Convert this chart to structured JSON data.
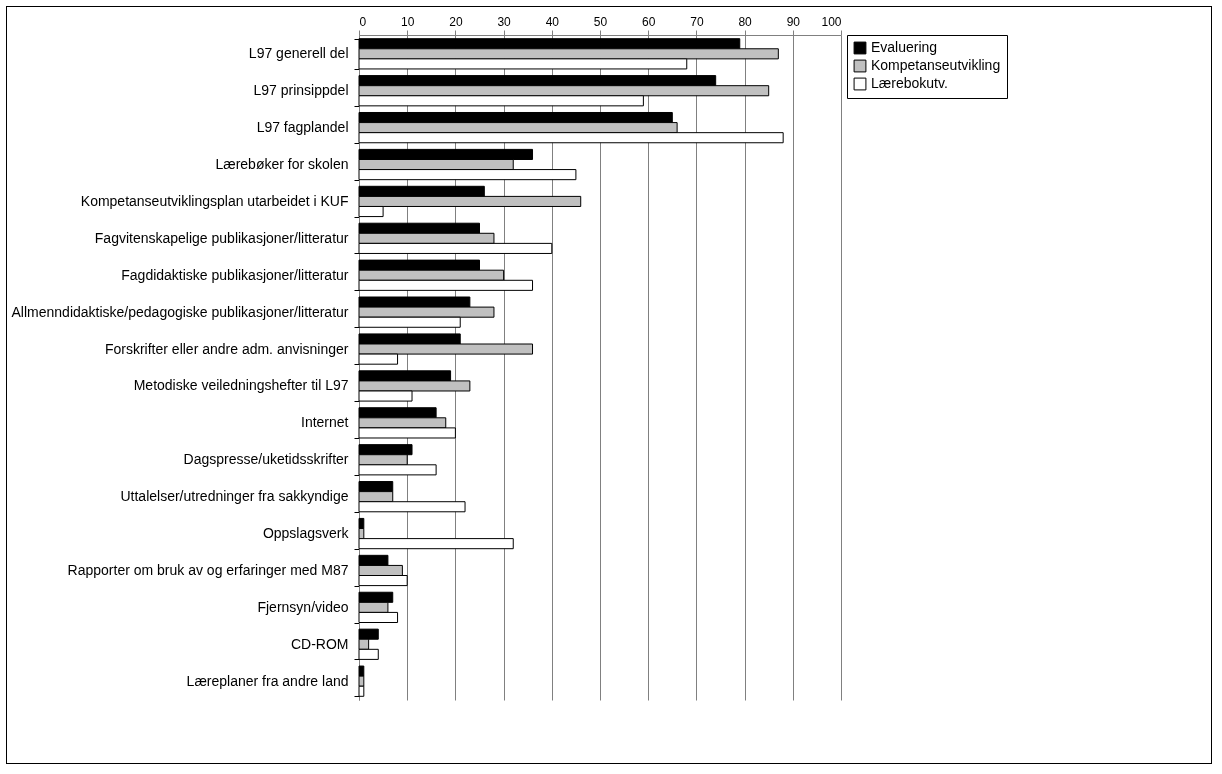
{
  "chart_data": {
    "type": "bar",
    "orientation": "horizontal",
    "categories": [
      "L97 generell del",
      "L97 prinsippdel",
      "L97 fagplandel",
      "Lærebøker for skolen",
      "Kompetanseutviklingsplan utarbeidet i KUF",
      "Fagvitenskapelige publikasjoner/litteratur",
      "Fagdidaktiske publikasjoner/litteratur",
      "Allmenndidaktiske/pedagogiske publikasjoner/litteratur",
      "Forskrifter eller andre adm. anvisninger",
      "Metodiske veiledningshefter til L97",
      "Internet",
      "Dagspresse/uketidsskrifter",
      "Uttalelser/utredninger fra sakkyndige",
      "Oppslagsverk",
      "Rapporter om bruk av og erfaringer med M87",
      "Fjernsyn/video",
      "CD-ROM",
      "Læreplaner fra andre land"
    ],
    "series": [
      {
        "name": "Evaluering",
        "color": "#000000",
        "values": [
          79,
          74,
          65,
          36,
          26,
          25,
          25,
          23,
          21,
          19,
          16,
          11,
          7,
          1,
          6,
          7,
          4,
          1
        ]
      },
      {
        "name": "Kompetanseutvikling",
        "color": "#c0c0c0",
        "values": [
          87,
          85,
          66,
          32,
          46,
          28,
          30,
          28,
          36,
          23,
          18,
          10,
          7,
          1,
          9,
          6,
          2,
          1
        ]
      },
      {
        "name": "Lærebokutv.",
        "color": "#ffffff",
        "values": [
          68,
          59,
          88,
          45,
          5,
          40,
          36,
          21,
          8,
          11,
          20,
          16,
          22,
          32,
          10,
          8,
          4,
          1
        ]
      }
    ],
    "xlim": [
      0,
      100
    ],
    "xticks": [
      0,
      10,
      20,
      30,
      40,
      50,
      60,
      70,
      80,
      90,
      100
    ],
    "grid": "x",
    "legend": "right"
  }
}
